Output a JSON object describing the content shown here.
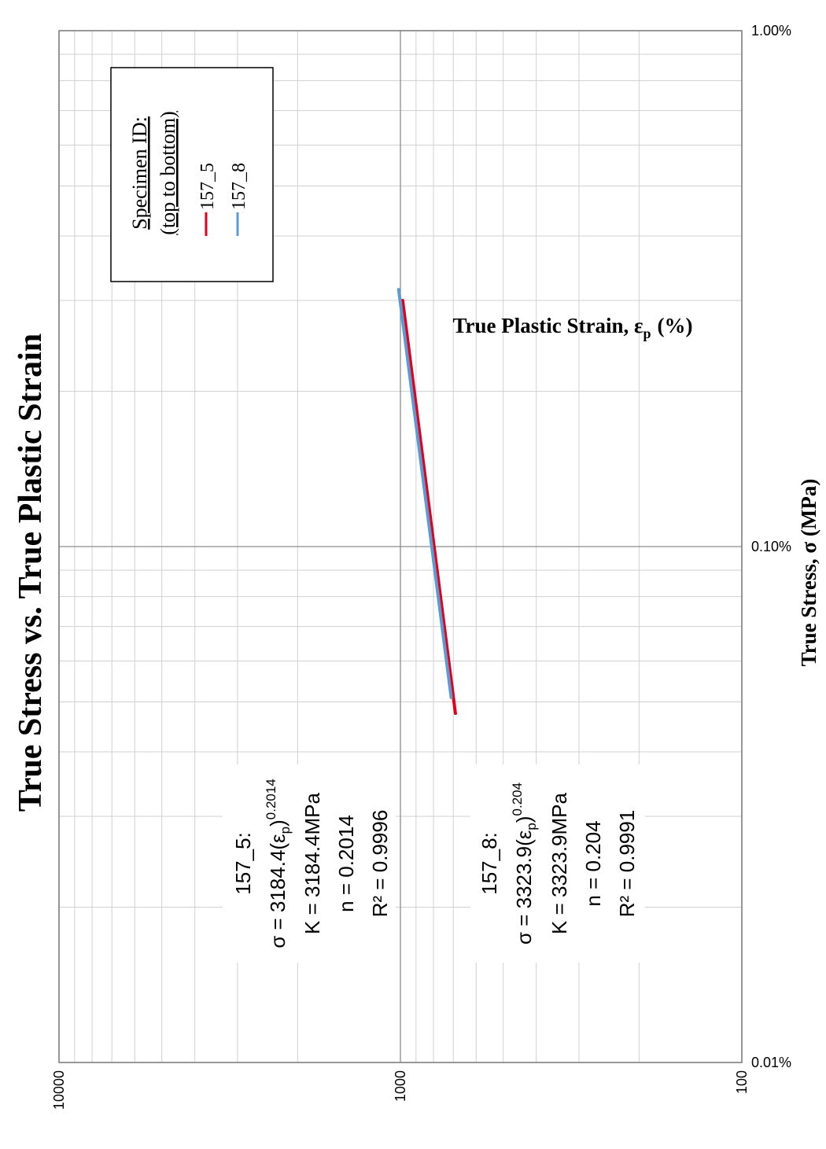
{
  "chart_data": {
    "type": "line",
    "title": "True Stress vs.  True Plastic Strain",
    "xlabel": "True Plastic Strain, ε",
    "xlabel_sub": "p",
    "xlabel_unit": "(%)",
    "ylabel": "True Stress, σ (MPa)",
    "xscale": "log",
    "yscale": "log",
    "xlim": [
      0.01,
      1.0
    ],
    "ylim": [
      100,
      10000
    ],
    "x_ticks": [
      0.01,
      0.1,
      1.0
    ],
    "x_tick_labels": [
      "0.01%",
      "0.10%",
      "1.00%"
    ],
    "y_ticks": [
      100,
      1000,
      10000
    ],
    "y_tick_labels": [
      "100",
      "1000",
      "10000"
    ],
    "grid": true,
    "orientation": "rotated 90° counter-clockwise",
    "legend": {
      "title_line1": "Specimen ID:",
      "title_line2": "(top to bottom)",
      "placement": "top-right",
      "entries": [
        "157_5",
        "157_8"
      ]
    },
    "series": [
      {
        "name": "157_5",
        "color": "#e3001b",
        "x": [
          0.0475,
          0.3
        ],
        "y": [
          690,
          985
        ]
      },
      {
        "name": "157_8",
        "color": "#5b9bd5",
        "x": [
          0.051,
          0.315
        ],
        "y": [
          710,
          1012
        ]
      }
    ],
    "annotations": [
      {
        "series": "157_5",
        "label": "157_5:",
        "eq_main": "σ = 3184.4(ε",
        "eq_sub": "p",
        "eq_close": ")",
        "eq_exp": "0.2014",
        "k_text": "K = 3184.4MPa",
        "n_text": "n = 0.2014",
        "r2_text": "R² = 0.9996"
      },
      {
        "series": "157_8",
        "label": "157_8:",
        "eq_main": "σ = 3323.9(ε",
        "eq_sub": "p",
        "eq_close": ")",
        "eq_exp": "0.204",
        "k_text": "K = 3323.9MPa",
        "n_text": "n = 0.204",
        "r2_text": "R² = 0.9991"
      }
    ]
  }
}
